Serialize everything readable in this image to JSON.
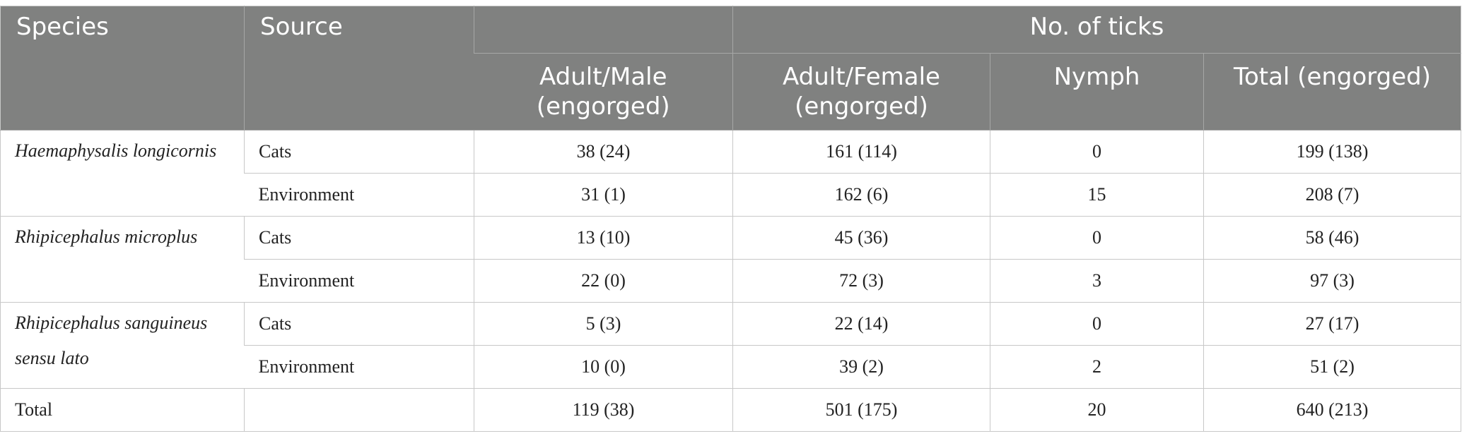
{
  "header": {
    "species": "Species",
    "source": "Source",
    "group": "No. of ticks",
    "adult_male": "Adult/Male (engorged)",
    "adult_female": "Adult/Female (engorged)",
    "nymph": "Nymph",
    "total": "Total (engorged)"
  },
  "rows": [
    {
      "species": "Haemaphysalis longicornis",
      "source": "Cats",
      "male": "38 (24)",
      "female": "161 (114)",
      "nymph": "0",
      "total": "199 (138)"
    },
    {
      "source": "Environment",
      "male": "31 (1)",
      "female": "162 (6)",
      "nymph": "15",
      "total": "208 (7)"
    },
    {
      "species": "Rhipicephalus microplus",
      "source": "Cats",
      "male": "13 (10)",
      "female": "45 (36)",
      "nymph": "0",
      "total": "58 (46)"
    },
    {
      "source": "Environment",
      "male": "22 (0)",
      "female": "72 (3)",
      "nymph": "3",
      "total": "97 (3)"
    },
    {
      "species": "Rhipicephalus sanguineus sensu lato",
      "source": "Cats",
      "male": "5 (3)",
      "female": "22 (14)",
      "nymph": "0",
      "total": "27 (17)"
    },
    {
      "source": "Environment",
      "male": "10 (0)",
      "female": "39 (2)",
      "nymph": "2",
      "total": "51 (2)"
    }
  ],
  "total_row": {
    "label": "Total",
    "source": "",
    "male": "119 (38)",
    "female": "501 (175)",
    "nymph": "20",
    "total": "640 (213)"
  }
}
